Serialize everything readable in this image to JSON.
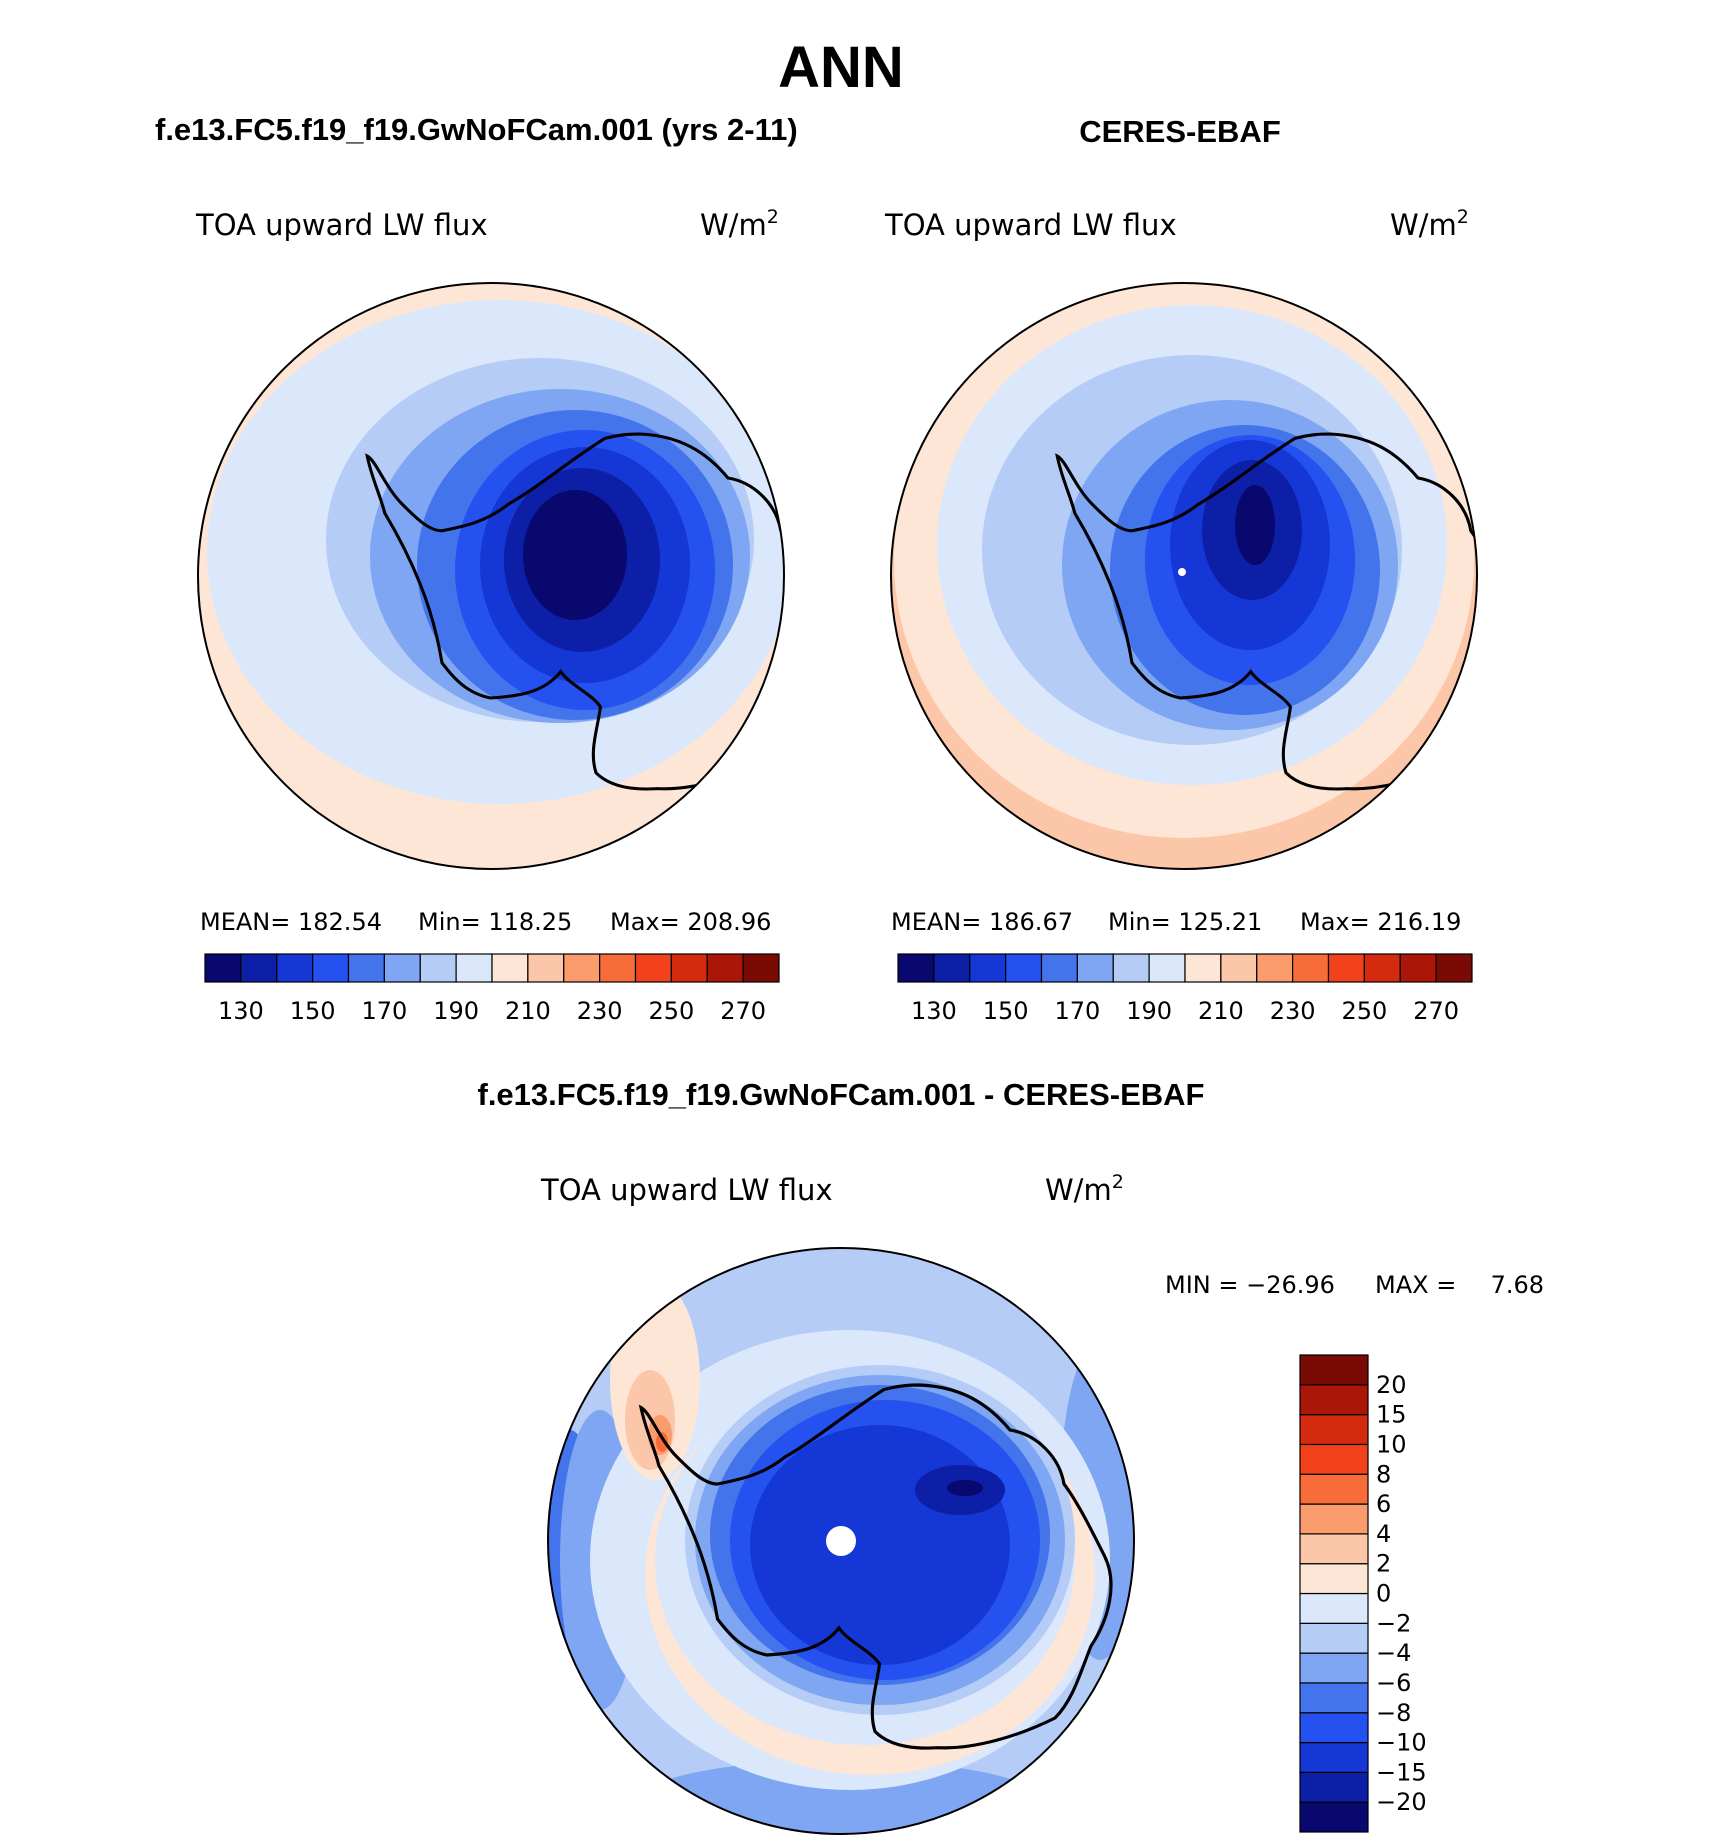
{
  "chart_data": {
    "type": "heatmap",
    "projection": "south-polar-stereographic",
    "title": "ANN",
    "panels": [
      {
        "id": "model",
        "case_title": "f.e13.FC5.f19_f19.GwNoFCam.001 (yrs 2-11)",
        "variable": "TOA upward LW flux",
        "units_base": "W/m",
        "units_sup": "2",
        "stats": {
          "mean_label": "MEAN=",
          "mean": "182.54",
          "min_label": "Min=",
          "min": "118.25",
          "max_label": "Max=",
          "max": "208.96"
        },
        "levels": [
          130,
          140,
          150,
          160,
          170,
          180,
          190,
          200,
          210,
          220,
          230,
          240,
          250,
          260,
          270
        ],
        "tick_labels": [
          "130",
          "150",
          "170",
          "190",
          "210",
          "230",
          "250",
          "270"
        ],
        "colors": [
          "#08086e",
          "#0c1fa6",
          "#1437d6",
          "#2451f0",
          "#4474ec",
          "#7ea6f2",
          "#b4ccf6",
          "#dbe7fb",
          "#fde6d6",
          "#fcc6a8",
          "#fb9c6c",
          "#f86c3a",
          "#f2421c",
          "#d42a0e",
          "#aa1708",
          "#7a0a04"
        ]
      },
      {
        "id": "obs",
        "case_title": "CERES-EBAF",
        "variable": "TOA upward LW flux",
        "units_base": "W/m",
        "units_sup": "2",
        "stats": {
          "mean_label": "MEAN=",
          "mean": "186.67",
          "min_label": "Min=",
          "min": "125.21",
          "max_label": "Max=",
          "max": "216.19"
        },
        "levels": [
          130,
          140,
          150,
          160,
          170,
          180,
          190,
          200,
          210,
          220,
          230,
          240,
          250,
          260,
          270
        ],
        "tick_labels": [
          "130",
          "150",
          "170",
          "190",
          "210",
          "230",
          "250",
          "270"
        ],
        "colors": [
          "#08086e",
          "#0c1fa6",
          "#1437d6",
          "#2451f0",
          "#4474ec",
          "#7ea6f2",
          "#b4ccf6",
          "#dbe7fb",
          "#fde6d6",
          "#fcc6a8",
          "#fb9c6c",
          "#f86c3a",
          "#f2421c",
          "#d42a0e",
          "#aa1708",
          "#7a0a04"
        ]
      },
      {
        "id": "diff",
        "case_title": "f.e13.FC5.f19_f19.GwNoFCam.001 - CERES-EBAF",
        "variable": "TOA upward LW flux",
        "units_base": "W/m",
        "units_sup": "2",
        "stats": {
          "min_label": "MIN =",
          "min": "−26.96",
          "max_label": "MAX =",
          "max": "7.68"
        },
        "levels": [
          -20,
          -15,
          -10,
          -8,
          -6,
          -4,
          -2,
          0,
          2,
          4,
          6,
          8,
          10,
          15,
          20
        ],
        "tick_labels": [
          "−20",
          "−15",
          "−10",
          "−8",
          "−6",
          "−4",
          "−2",
          "0",
          "2",
          "4",
          "6",
          "8",
          "10",
          "15",
          "20"
        ],
        "colors": [
          "#08086e",
          "#0c1fa6",
          "#1437d6",
          "#2451f0",
          "#4474ec",
          "#7ea6f2",
          "#b4ccf6",
          "#dbe7fb",
          "#fde6d6",
          "#fcc6a8",
          "#fb9c6c",
          "#f86c3a",
          "#f2421c",
          "#d42a0e",
          "#aa1708",
          "#7a0a04"
        ]
      }
    ]
  }
}
